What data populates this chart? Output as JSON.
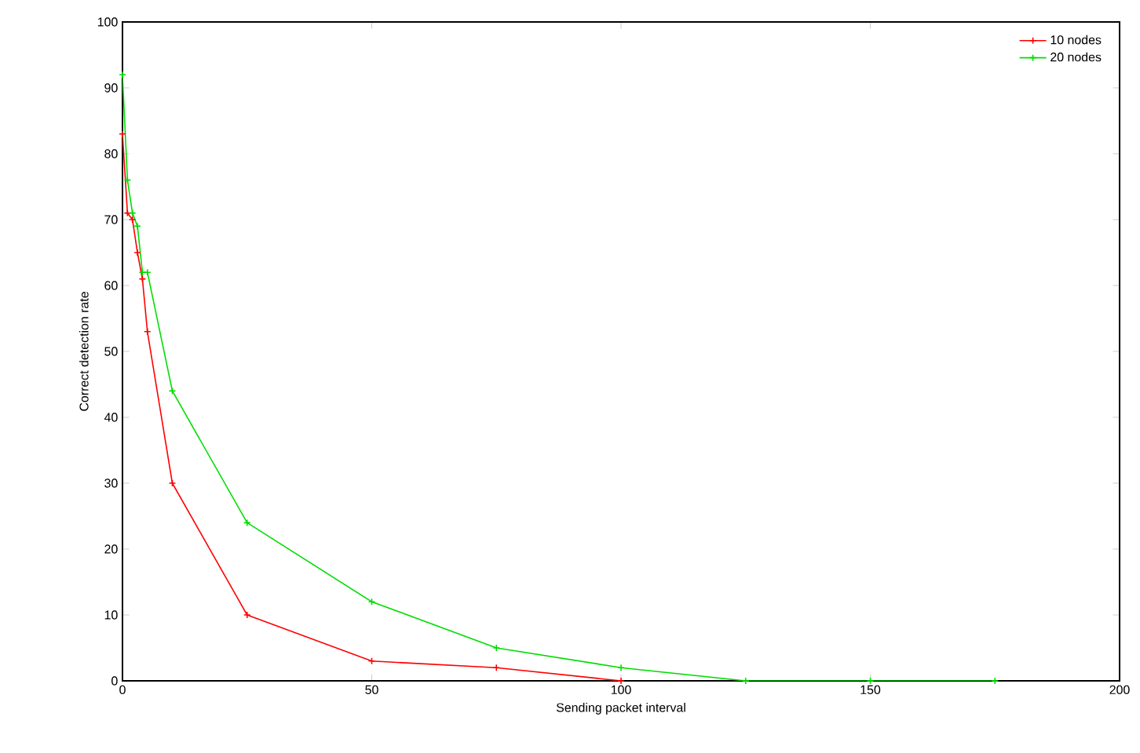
{
  "chart_data": {
    "type": "line",
    "xlabel": "Sending packet interval",
    "ylabel": "Correct detection rate",
    "x": [
      0,
      1,
      2,
      3,
      4,
      5,
      10,
      25,
      50,
      75,
      100,
      125,
      150,
      175
    ],
    "series": [
      {
        "name": "10 nodes",
        "color": "#ff0000",
        "values": [
          83,
          71,
          70,
          65,
          61,
          53,
          30,
          10,
          3,
          2,
          0,
          null,
          null,
          null
        ]
      },
      {
        "name": "20 nodes",
        "color": "#00dd00",
        "values": [
          92,
          76,
          71,
          69,
          62,
          62,
          44,
          24,
          12,
          5,
          2,
          0,
          0,
          0
        ]
      }
    ],
    "xlim": [
      0,
      200
    ],
    "ylim": [
      0,
      100
    ],
    "xticks": [
      0,
      50,
      100,
      150,
      200
    ],
    "yticks": [
      0,
      10,
      20,
      30,
      40,
      50,
      60,
      70,
      80,
      90,
      100
    ],
    "grid": false,
    "legend": "top right",
    "marker": "cross",
    "line_style": "solid"
  }
}
